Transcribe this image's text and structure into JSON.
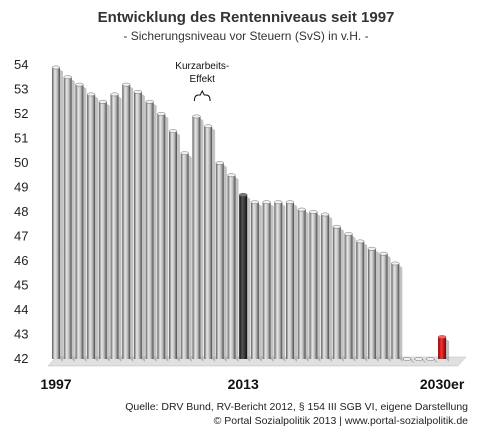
{
  "chart_data": {
    "type": "bar",
    "title": "Entwicklung des Rentenniveaus seit 1997",
    "subtitle": "- Sicherungsniveau vor Steuern (SvS) in v.H. -",
    "x_tick_labels": [
      "1997",
      "2013",
      "2030er"
    ],
    "y_ticks": [
      42,
      43,
      44,
      45,
      46,
      47,
      48,
      49,
      50,
      51,
      52,
      53,
      54
    ],
    "ylim": [
      42,
      54
    ],
    "grid": false,
    "values": [
      53.9,
      53.5,
      53.2,
      52.8,
      52.5,
      52.8,
      53.2,
      52.9,
      52.5,
      52.0,
      51.3,
      50.4,
      51.9,
      51.5,
      50.0,
      49.5,
      48.7,
      48.4,
      48.4,
      48.4,
      48.4,
      48.1,
      48.0,
      47.9,
      47.4,
      47.1,
      46.8,
      46.5,
      46.3,
      45.9,
      42.0,
      42.0,
      42.0,
      42.9
    ],
    "highlight": {
      "index": 16,
      "label": "2013",
      "color": "#2a2a2a"
    },
    "future": {
      "index": 33,
      "label": "2030er",
      "value": 42.9,
      "color": "#cc0000"
    },
    "annotation": {
      "line1": "Kurzarbeits-",
      "line2": "Effekt",
      "indices": [
        12,
        13
      ]
    }
  },
  "footer": {
    "source": "Quelle: DRV Bund, RV-Bericht 2012, § 154 III SGB VI, eigene Darstellung",
    "copyright": "© Portal Sozialpolitik 2013 | www.portal-sozialpolitik.de"
  },
  "colors": {
    "bar": "#8c8c8c",
    "highlight": "#2a2a2a",
    "future": "#cc0000",
    "floor": "#e0e0e0"
  }
}
